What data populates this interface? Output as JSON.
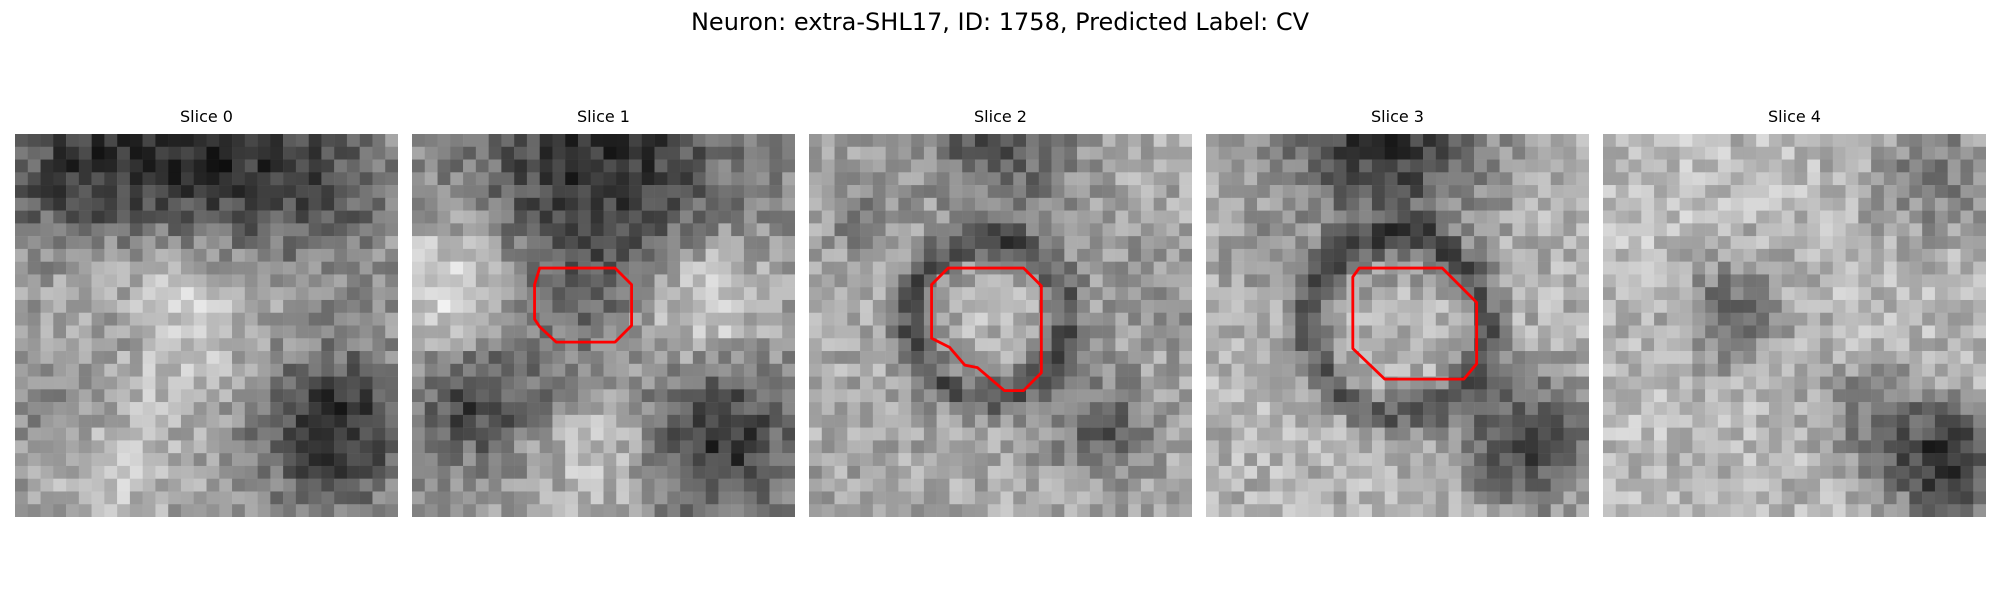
{
  "figure": {
    "title": "Neuron: extra-SHL17, ID: 1758, Predicted Label: CV"
  },
  "colors": {
    "roi_outline": "#ff0000",
    "colormap": "grayscale"
  },
  "panels": [
    {
      "title": "Slice 0",
      "has_roi": false
    },
    {
      "title": "Slice 1",
      "has_roi": true
    },
    {
      "title": "Slice 2",
      "has_roi": true
    },
    {
      "title": "Slice 3",
      "has_roi": true
    },
    {
      "title": "Slice 4",
      "has_roi": false
    }
  ]
}
